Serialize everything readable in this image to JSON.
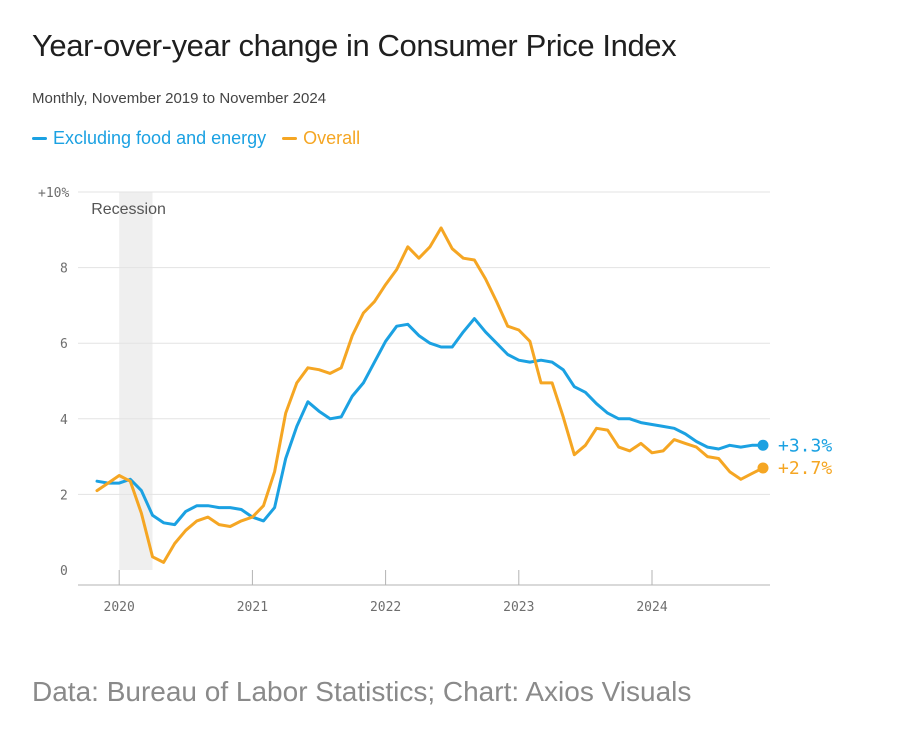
{
  "header": {
    "title": "Year-over-year change in Consumer Price Index",
    "subtitle": "Monthly, November 2019 to November 2024"
  },
  "footer": {
    "source": "Data: Bureau of Labor Statistics; Chart: Axios Visuals"
  },
  "colors": {
    "core": "#1ba1e2",
    "overall": "#f5a623",
    "recession": "#efefef",
    "grid": "#e3e3e3",
    "axis": "#b3b3b3"
  },
  "chart_data": {
    "type": "line",
    "title": "Year-over-year change in Consumer Price Index",
    "subtitle": "Monthly, November 2019 to November 2024",
    "xlabel": "",
    "ylabel": "",
    "x_start": "2019-11",
    "x_end": "2024-11",
    "ylim": [
      0,
      10
    ],
    "y_ticks": [
      {
        "value": 0,
        "label": "0"
      },
      {
        "value": 2,
        "label": "2"
      },
      {
        "value": 4,
        "label": "4"
      },
      {
        "value": 6,
        "label": "6"
      },
      {
        "value": 8,
        "label": "8"
      },
      {
        "value": 10,
        "label": "+10%"
      }
    ],
    "x_ticks": [
      {
        "month_index": 2,
        "label": "2020"
      },
      {
        "month_index": 14,
        "label": "2021"
      },
      {
        "month_index": 26,
        "label": "2022"
      },
      {
        "month_index": 38,
        "label": "2023"
      },
      {
        "month_index": 50,
        "label": "2024"
      }
    ],
    "grid": true,
    "legend": "top-left",
    "annotations": [
      {
        "text": "Recession",
        "start_month_index": 2,
        "end_month_index": 5
      }
    ],
    "series": [
      {
        "name": "Excluding food and energy",
        "color": "#1ba1e2",
        "end_label": "+3.3%",
        "values": [
          2.35,
          2.3,
          2.3,
          2.4,
          2.1,
          1.45,
          1.25,
          1.2,
          1.55,
          1.7,
          1.7,
          1.65,
          1.65,
          1.6,
          1.4,
          1.3,
          1.65,
          2.95,
          3.8,
          4.45,
          4.2,
          4.0,
          4.05,
          4.6,
          4.95,
          5.5,
          6.05,
          6.45,
          6.5,
          6.2,
          6.0,
          5.9,
          5.9,
          6.3,
          6.65,
          6.3,
          6.0,
          5.7,
          5.55,
          5.5,
          5.55,
          5.5,
          5.3,
          4.85,
          4.7,
          4.4,
          4.15,
          4.0,
          4.0,
          3.9,
          3.85,
          3.8,
          3.75,
          3.6,
          3.4,
          3.25,
          3.2,
          3.3,
          3.25,
          3.3,
          3.3
        ]
      },
      {
        "name": "Overall",
        "color": "#f5a623",
        "end_label": "+2.7%",
        "values": [
          2.1,
          2.3,
          2.5,
          2.35,
          1.5,
          0.35,
          0.2,
          0.7,
          1.05,
          1.3,
          1.4,
          1.2,
          1.15,
          1.3,
          1.4,
          1.7,
          2.6,
          4.15,
          4.95,
          5.35,
          5.3,
          5.2,
          5.35,
          6.2,
          6.8,
          7.1,
          7.55,
          7.95,
          8.55,
          8.25,
          8.55,
          9.05,
          8.5,
          8.25,
          8.2,
          7.7,
          7.1,
          6.45,
          6.35,
          6.05,
          4.95,
          4.95,
          4.05,
          3.05,
          3.3,
          3.75,
          3.7,
          3.25,
          3.15,
          3.35,
          3.1,
          3.15,
          3.45,
          3.35,
          3.25,
          3.0,
          2.95,
          2.6,
          2.4,
          2.55,
          2.7
        ]
      }
    ]
  }
}
